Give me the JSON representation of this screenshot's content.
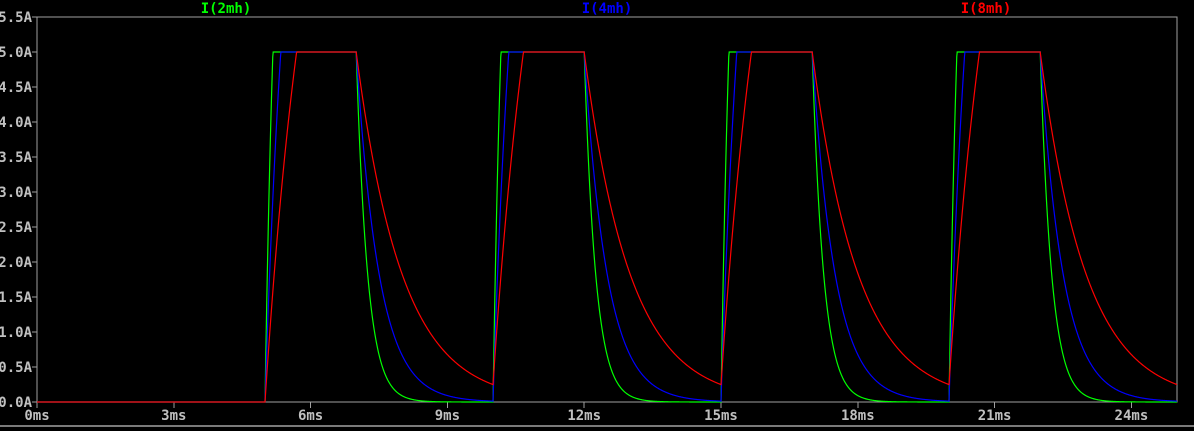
{
  "legend": {
    "items": [
      {
        "label": "I(2mh)",
        "color": "#00ff00"
      },
      {
        "label": "I(4mh)",
        "color": "#0000ff"
      },
      {
        "label": "I(8mh)",
        "color": "#ff0000"
      }
    ]
  },
  "chart_data": {
    "type": "line",
    "title": "",
    "xlabel": "",
    "ylabel": "",
    "x_unit": "ms",
    "y_unit": "A",
    "xlim": [
      0,
      25
    ],
    "ylim": [
      0,
      5.5
    ],
    "grid": false,
    "legend_position": "top",
    "x_ticks": [
      {
        "value": 0,
        "label": "0ms"
      },
      {
        "value": 3,
        "label": "3ms"
      },
      {
        "value": 6,
        "label": "6ms"
      },
      {
        "value": 9,
        "label": "9ms"
      },
      {
        "value": 12,
        "label": "12ms"
      },
      {
        "value": 15,
        "label": "15ms"
      },
      {
        "value": 18,
        "label": "18ms"
      },
      {
        "value": 21,
        "label": "21ms"
      },
      {
        "value": 24,
        "label": "24ms"
      }
    ],
    "y_ticks": [
      {
        "value": 0.0,
        "label": "0.0A"
      },
      {
        "value": 0.5,
        "label": "0.5A"
      },
      {
        "value": 1.0,
        "label": "1.0A"
      },
      {
        "value": 1.5,
        "label": "1.5A"
      },
      {
        "value": 2.0,
        "label": "2.0A"
      },
      {
        "value": 2.5,
        "label": "2.5A"
      },
      {
        "value": 3.0,
        "label": "3.0A"
      },
      {
        "value": 3.5,
        "label": "3.5A"
      },
      {
        "value": 4.0,
        "label": "4.0A"
      },
      {
        "value": 4.5,
        "label": "4.5A"
      },
      {
        "value": 5.0,
        "label": "5.0A"
      },
      {
        "value": 5.5,
        "label": "5.5A"
      }
    ],
    "series": [
      {
        "name": "I(2mh)",
        "color": "#00ff00",
        "inductance_mH": 2,
        "tau_ms": 0.25
      },
      {
        "name": "I(4mh)",
        "color": "#0000ff",
        "inductance_mH": 4,
        "tau_ms": 0.5
      },
      {
        "name": "I(8mh)",
        "color": "#ff0000",
        "inductance_mH": 8,
        "tau_ms": 1.0
      }
    ],
    "waveform_model": {
      "pulses_ms": [
        [
          5,
          7
        ],
        [
          10,
          12
        ],
        [
          15,
          17
        ],
        [
          20,
          22
        ]
      ],
      "clamp_current_A": 5.0,
      "drive_asymptote_A": 10.0,
      "initial_current_A": 0.0,
      "t_end_ms": 25,
      "peak_flat_top_A": 5.0,
      "red_floor_before_next_pulse_A": 0.25
    },
    "colors": {
      "background": "#000000",
      "axis": "#a0a0a0",
      "tick_text": "#c0c0c0"
    }
  },
  "window_chrome": {
    "bottom_strip_color": "#7a7a7a"
  }
}
